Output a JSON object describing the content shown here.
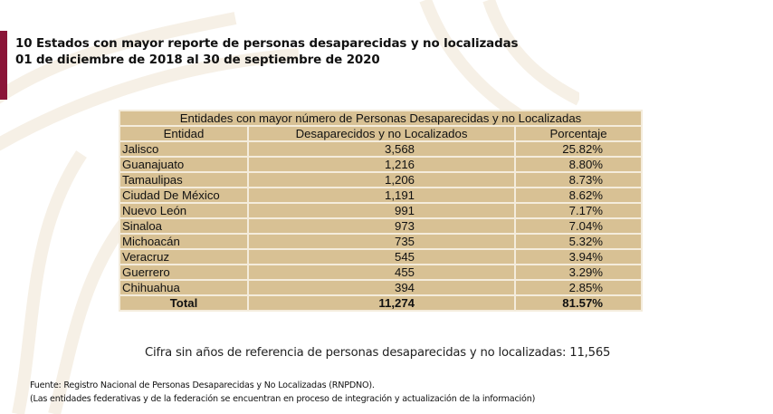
{
  "header": {
    "title_line1": "10 Estados con mayor reporte de personas desaparecidas y no localizadas",
    "title_line2": "01 de diciembre de 2018 al 30 de septiembre de 2020"
  },
  "colors": {
    "accent": "#8b1538",
    "table_bg": "#d8c194",
    "table_border": "#f4ecdc"
  },
  "table": {
    "caption": "Entidades con mayor número de Personas Desaparecidas y no Localizadas",
    "columns": [
      "Entidad",
      "Desaparecidos y no Localizados",
      "Porcentaje"
    ],
    "rows": [
      {
        "entidad": "Jalisco",
        "cantidad": "3,568",
        "porcentaje": "25.82%"
      },
      {
        "entidad": "Guanajuato",
        "cantidad": "1,216",
        "porcentaje": "8.80%"
      },
      {
        "entidad": "Tamaulipas",
        "cantidad": "1,206",
        "porcentaje": "8.73%"
      },
      {
        "entidad": "Ciudad De México",
        "cantidad": "1,191",
        "porcentaje": "8.62%"
      },
      {
        "entidad": "Nuevo León",
        "cantidad": "991",
        "porcentaje": "7.17%"
      },
      {
        "entidad": "Sinaloa",
        "cantidad": "973",
        "porcentaje": "7.04%"
      },
      {
        "entidad": "Michoacán",
        "cantidad": "735",
        "porcentaje": "5.32%"
      },
      {
        "entidad": "Veracruz",
        "cantidad": "545",
        "porcentaje": "3.94%"
      },
      {
        "entidad": "Guerrero",
        "cantidad": "455",
        "porcentaje": "3.29%"
      },
      {
        "entidad": "Chihuahua",
        "cantidad": "394",
        "porcentaje": "2.85%"
      }
    ],
    "total": {
      "label": "Total",
      "cantidad": "11,274",
      "porcentaje": "81.57%"
    }
  },
  "cifra_sin_anos": "Cifra sin años de referencia de personas desaparecidas y no localizadas: 11,565",
  "footer": {
    "line1": "Fuente: Registro Nacional de Personas Desaparecidas y No Localizadas (RNPDNO).",
    "line2": "(Las entidades federativas y de la federación se encuentran en proceso de integración y actualización de la información)"
  }
}
